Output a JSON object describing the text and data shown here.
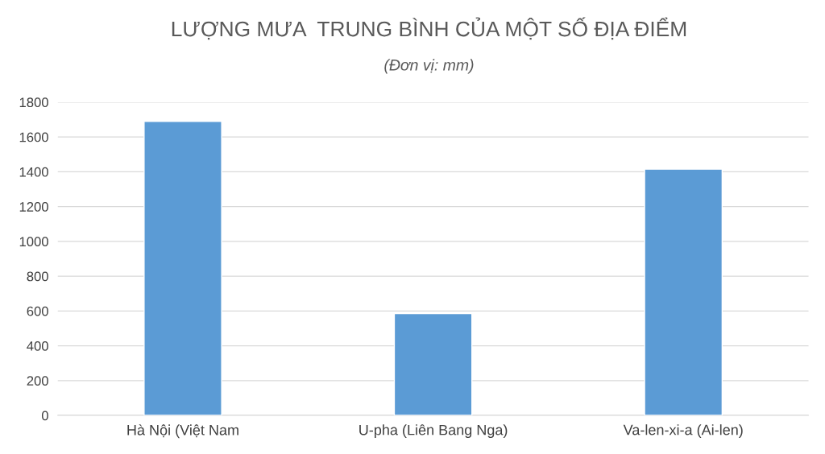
{
  "chart_data": {
    "type": "bar",
    "title": "LƯỢNG MƯA  TRUNG BÌNH CỦA MỘT SỐ ĐỊA ĐIỂM",
    "subtitle": "(Đơn vị: mm)",
    "categories": [
      "Hà Nội (Việt Nam",
      "U-pha (Liên Bang Nga)",
      "Va-len-xi-a (Ai-len)"
    ],
    "values": [
      1690,
      585,
      1415
    ],
    "color": "#5b9bd5",
    "ylim": [
      0,
      1800
    ],
    "yticks": [
      0,
      200,
      400,
      600,
      800,
      1000,
      1200,
      1400,
      1600,
      1800
    ],
    "grid": "y"
  }
}
